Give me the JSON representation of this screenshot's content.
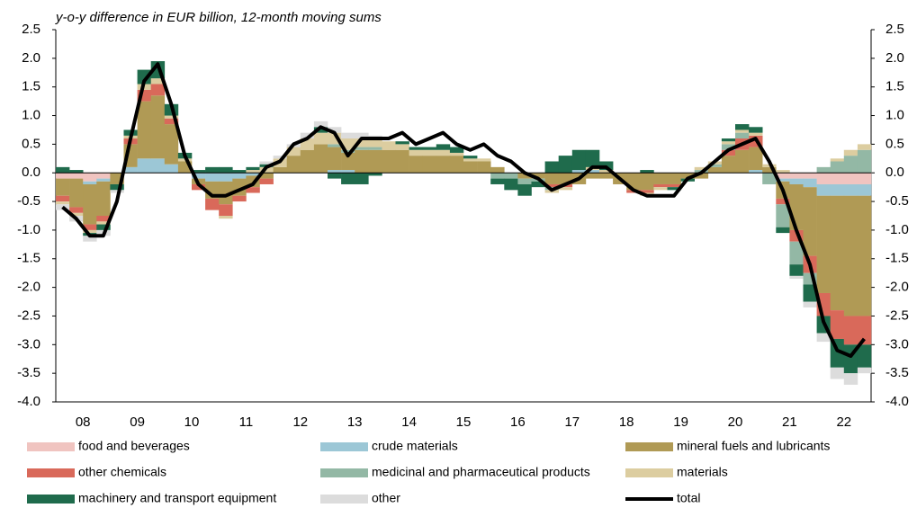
{
  "chart_data": {
    "type": "stacked-bar-line",
    "subtitle": "y-o-y difference in EUR billion, 12-month moving sums",
    "categories": [
      null,
      "08",
      null,
      null,
      null,
      "09",
      null,
      null,
      null,
      "10",
      null,
      null,
      null,
      "11",
      null,
      null,
      null,
      "12",
      null,
      null,
      null,
      "13",
      null,
      null,
      null,
      "14",
      null,
      null,
      null,
      "15",
      null,
      null,
      null,
      "16",
      null,
      null,
      null,
      "17",
      null,
      null,
      null,
      "18",
      null,
      null,
      null,
      "19",
      null,
      null,
      null,
      "20",
      null,
      null,
      null,
      "21",
      null,
      null,
      null,
      "22",
      null,
      null
    ],
    "ylim": [
      -4.0,
      2.5
    ],
    "yticks": [
      {
        "value": 2.5,
        "label": "2.5"
      },
      {
        "value": 2.0,
        "label": "2.0"
      },
      {
        "value": 1.5,
        "label": "1.5"
      },
      {
        "value": 1.0,
        "label": "1.0"
      },
      {
        "value": 0.5,
        "label": "0.5"
      },
      {
        "value": 0.0,
        "label": "0.0"
      },
      {
        "value": -0.5,
        "label": "-0.5"
      },
      {
        "value": -1.0,
        "label": "-1.0"
      },
      {
        "value": -1.5,
        "label": "-1.5"
      },
      {
        "value": -2.0,
        "label": "-2.0"
      },
      {
        "value": -2.5,
        "label": "-2.5"
      },
      {
        "value": -3.0,
        "label": "-3.0"
      },
      {
        "value": -3.5,
        "label": "-3.5"
      },
      {
        "value": -4.0,
        "label": "-4.0"
      }
    ],
    "series": [
      {
        "name": "food and beverages",
        "color": "#f0c4c0",
        "values": [
          -0.1,
          -0.1,
          -0.15,
          -0.1,
          0,
          0,
          0,
          0,
          0,
          0,
          0,
          0,
          0,
          0,
          0,
          0,
          0,
          0,
          0,
          0,
          0,
          0,
          0,
          0,
          0,
          0,
          0,
          0,
          0,
          0,
          0,
          0,
          0,
          0,
          0,
          0,
          0,
          0,
          0,
          0,
          0,
          0,
          0,
          0,
          0,
          0,
          0,
          0,
          0,
          0,
          0,
          0,
          0,
          -0.1,
          -0.1,
          -0.1,
          -0.2,
          -0.2,
          -0.2,
          -0.2
        ]
      },
      {
        "name": "crude materials",
        "color": "#9cc7d6",
        "values": [
          0,
          0,
          -0.05,
          -0.05,
          0,
          0.1,
          0.25,
          0.25,
          0.15,
          0,
          -0.1,
          -0.15,
          -0.15,
          -0.1,
          -0.05,
          0,
          0,
          0,
          0,
          0,
          0.05,
          0.05,
          0,
          0,
          0,
          0,
          0,
          0,
          0,
          0,
          0,
          0,
          0,
          0,
          0,
          0,
          0,
          0,
          0.05,
          0.05,
          0,
          0,
          0,
          0,
          0,
          0,
          0,
          0,
          0,
          0,
          0,
          0.05,
          0,
          -0.05,
          -0.1,
          -0.15,
          -0.2,
          -0.2,
          -0.2,
          -0.2
        ]
      },
      {
        "name": "mineral fuels and lubricants",
        "color": "#b09a55",
        "values": [
          -0.3,
          -0.5,
          -0.7,
          -0.6,
          -0.2,
          0.4,
          1.0,
          1.1,
          0.7,
          0.2,
          -0.1,
          -0.3,
          -0.4,
          -0.3,
          -0.2,
          -0.1,
          0.1,
          0.3,
          0.4,
          0.5,
          0.4,
          0.3,
          0.4,
          0.4,
          0.4,
          0.4,
          0.3,
          0.3,
          0.3,
          0.3,
          0.2,
          0.2,
          0.1,
          0,
          -0.1,
          -0.1,
          -0.2,
          -0.2,
          -0.2,
          -0.1,
          -0.1,
          -0.2,
          -0.3,
          -0.3,
          -0.2,
          -0.2,
          -0.1,
          -0.1,
          0.1,
          0.3,
          0.4,
          0.4,
          0.1,
          -0.3,
          -0.8,
          -1.2,
          -1.7,
          -2.0,
          -2.1,
          -2.1
        ]
      },
      {
        "name": "other chemicals",
        "color": "#d9695a",
        "values": [
          -0.1,
          -0.1,
          -0.1,
          -0.1,
          0,
          0.1,
          0.2,
          0.2,
          0.1,
          0,
          -0.1,
          -0.2,
          -0.2,
          -0.1,
          -0.1,
          -0.1,
          0,
          0,
          0,
          0,
          0,
          0,
          0,
          0,
          0,
          0,
          0,
          0,
          0,
          0,
          0,
          0,
          0,
          0,
          0,
          0,
          -0.05,
          -0.05,
          0,
          0,
          0,
          0,
          -0.05,
          -0.05,
          -0.05,
          -0.05,
          0,
          0,
          0,
          0.1,
          0.2,
          0.2,
          0,
          -0.1,
          -0.2,
          -0.3,
          -0.4,
          -0.5,
          -0.5,
          -0.5
        ]
      },
      {
        "name": "medicinal and pharmaceutical products",
        "color": "#93b8a5",
        "values": [
          0,
          0,
          0,
          0,
          0,
          0,
          0,
          0,
          0,
          0,
          0,
          0,
          0,
          0,
          0,
          0,
          0,
          0,
          0,
          0,
          0.05,
          0.05,
          0.05,
          0.05,
          0,
          0,
          0,
          0,
          0,
          0,
          0,
          0,
          -0.1,
          -0.1,
          -0.1,
          -0.05,
          -0.05,
          0,
          0,
          0,
          0,
          0,
          0,
          0,
          0,
          0,
          0,
          0.05,
          0.05,
          0.1,
          0.1,
          0,
          -0.2,
          -0.4,
          -0.4,
          -0.2,
          0.1,
          0.2,
          0.3,
          0.4
        ]
      },
      {
        "name": "materials",
        "color": "#dccda0",
        "values": [
          -0.05,
          -0.05,
          -0.05,
          -0.05,
          0,
          0.05,
          0.1,
          0.1,
          0.05,
          0.05,
          0,
          0,
          -0.05,
          0,
          0.05,
          0.1,
          0.15,
          0.15,
          0.2,
          0.2,
          0.2,
          0.2,
          0.15,
          0.15,
          0.15,
          0.1,
          0.1,
          0.1,
          0.1,
          0.05,
          0.05,
          0.05,
          0,
          0,
          0,
          0,
          -0.05,
          -0.05,
          0,
          0.05,
          0.05,
          0,
          0,
          -0.05,
          -0.05,
          0,
          0,
          0.05,
          0.05,
          0.05,
          0.05,
          0.05,
          0.05,
          0.05,
          0,
          0,
          0,
          0.05,
          0.1,
          0.1
        ]
      },
      {
        "name": "machinery and transport equipment",
        "color": "#1f6b4c",
        "values": [
          0.1,
          0.05,
          -0.05,
          -0.1,
          -0.1,
          0.1,
          0.25,
          0.3,
          0.2,
          0.1,
          0.05,
          0.1,
          0.1,
          0.05,
          0.05,
          0.05,
          0,
          0,
          0,
          0.1,
          -0.1,
          -0.2,
          -0.2,
          -0.05,
          0,
          0.05,
          0.05,
          0.05,
          0.1,
          0.1,
          0.05,
          0,
          -0.1,
          -0.2,
          -0.2,
          -0.1,
          0.2,
          0.3,
          0.35,
          0.3,
          0.15,
          0,
          0,
          0.05,
          0,
          -0.05,
          -0.05,
          0,
          0,
          0.05,
          0.1,
          0.1,
          0,
          -0.1,
          -0.2,
          -0.3,
          -0.3,
          -0.5,
          -0.5,
          -0.4
        ]
      },
      {
        "name": "other",
        "color": "#dcdcdc",
        "values": [
          -0.1,
          -0.1,
          -0.1,
          -0.1,
          -0.05,
          0,
          0,
          0,
          0,
          0,
          0,
          0,
          0,
          0,
          0,
          0.05,
          0.05,
          0.05,
          0.1,
          0.1,
          0.1,
          0.1,
          0.1,
          0.05,
          0,
          0,
          0,
          0,
          0,
          0,
          0,
          0,
          0,
          0,
          0,
          0,
          0,
          0,
          0,
          0,
          0,
          0,
          0,
          0,
          0,
          0,
          0,
          0,
          0,
          0,
          0,
          0,
          0,
          0,
          -0.05,
          -0.1,
          -0.15,
          -0.2,
          -0.2,
          -0.1
        ]
      }
    ],
    "total": {
      "name": "total",
      "color": "#000000",
      "values": [
        -0.6,
        -0.8,
        -1.1,
        -1.1,
        -0.5,
        0.6,
        1.6,
        1.9,
        1.2,
        0.3,
        -0.2,
        -0.4,
        -0.4,
        -0.3,
        -0.2,
        0.1,
        0.2,
        0.5,
        0.6,
        0.8,
        0.7,
        0.3,
        0.6,
        0.6,
        0.6,
        0.7,
        0.5,
        0.6,
        0.7,
        0.5,
        0.4,
        0.5,
        0.3,
        0.2,
        0.0,
        -0.1,
        -0.3,
        -0.2,
        -0.1,
        0.1,
        0.1,
        -0.1,
        -0.3,
        -0.4,
        -0.4,
        -0.4,
        -0.1,
        0.0,
        0.2,
        0.4,
        0.5,
        0.6,
        0.2,
        -0.3,
        -1.0,
        -1.6,
        -2.6,
        -3.1,
        -3.2,
        -2.9
      ]
    }
  }
}
